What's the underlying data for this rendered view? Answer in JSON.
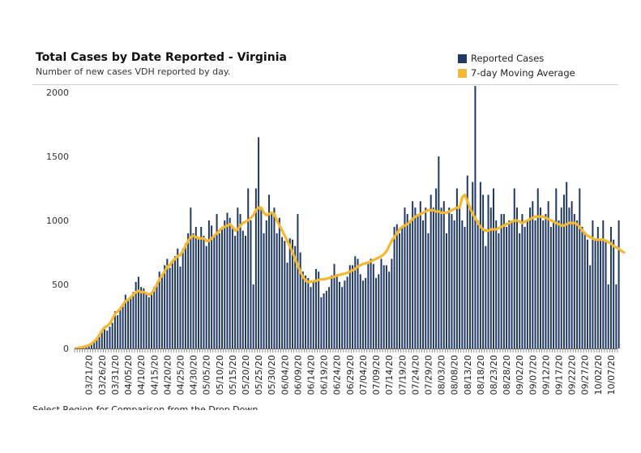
{
  "chart_data": {
    "type": "bar",
    "title": "Total Cases by Date Reported - Virginia",
    "subtitle": "Number of new cases VDH reported by day.",
    "legend": [
      {
        "label": "Reported Cases",
        "color": "#1f3864",
        "kind": "bar"
      },
      {
        "label": "7-day Moving Average",
        "color": "#f5b82e",
        "kind": "line"
      }
    ],
    "legend_position": "top-right",
    "ylim": [
      0,
      2000
    ],
    "yticks": [
      "0",
      "500",
      "1000",
      "1500",
      "2000"
    ],
    "x_start": "03/16/20",
    "x_end": "10/09/20",
    "xtick_labels": [
      "03/21/20",
      "03/26/20",
      "03/31/20",
      "04/05/20",
      "04/10/20",
      "04/15/20",
      "04/20/20",
      "04/25/20",
      "04/30/20",
      "05/05/20",
      "05/10/20",
      "05/15/20",
      "05/20/20",
      "05/25/20",
      "05/30/20",
      "06/04/20",
      "06/09/20",
      "06/14/20",
      "06/19/20",
      "06/24/20",
      "06/29/20",
      "07/04/20",
      "07/09/20",
      "07/14/20",
      "07/19/20",
      "07/24/20",
      "07/29/20",
      "08/03/20",
      "08/08/20",
      "08/13/20",
      "08/18/20",
      "08/23/20",
      "08/28/20",
      "09/02/20",
      "09/07/20",
      "09/12/20",
      "09/17/20",
      "09/22/20",
      "09/27/20",
      "10/02/20",
      "10/07/20"
    ],
    "series": [
      {
        "name": "Reported Cases",
        "type": "bar",
        "values": [
          2,
          5,
          10,
          15,
          20,
          30,
          45,
          60,
          80,
          110,
          130,
          150,
          140,
          170,
          200,
          290,
          260,
          300,
          330,
          420,
          380,
          400,
          440,
          520,
          560,
          480,
          470,
          430,
          400,
          420,
          480,
          500,
          600,
          570,
          650,
          700,
          630,
          680,
          720,
          780,
          640,
          780,
          820,
          900,
          1100,
          900,
          950,
          860,
          950,
          880,
          800,
          1000,
          960,
          880,
          1050,
          900,
          950,
          1000,
          1060,
          1020,
          940,
          880,
          1100,
          1050,
          920,
          880,
          1250,
          1000,
          500,
          1250,
          1650,
          1100,
          900,
          1000,
          1200,
          1050,
          1100,
          900,
          1020,
          870,
          840,
          670,
          860,
          850,
          800,
          1050,
          750,
          600,
          570,
          550,
          480,
          530,
          620,
          600,
          400,
          430,
          450,
          480,
          570,
          660,
          580,
          520,
          480,
          530,
          560,
          650,
          650,
          720,
          700,
          580,
          530,
          550,
          680,
          700,
          660,
          550,
          580,
          700,
          650,
          650,
          600,
          700,
          950,
          970,
          900,
          950,
          1100,
          1050,
          1000,
          1150,
          1100,
          1050,
          1150,
          1000,
          1100,
          900,
          1200,
          1100,
          1250,
          1500,
          1100,
          1150,
          900,
          1100,
          1050,
          1000,
          1250,
          1100,
          1000,
          950,
          1350,
          1100,
          1300,
          2050,
          1000,
          1300,
          1200,
          800,
          1200,
          1100,
          1250,
          1000,
          900,
          1050,
          1050,
          950,
          1000,
          1000,
          1250,
          1100,
          900,
          1050,
          950,
          1000,
          1100,
          1150,
          1000,
          1250,
          1100,
          1000,
          1050,
          1150,
          950,
          1000,
          1250,
          1000,
          1100,
          1200,
          1300,
          1100,
          1150,
          1050,
          1000,
          1250,
          950,
          900,
          850,
          650,
          1000,
          850,
          950,
          850,
          1000,
          850,
          500,
          950,
          850,
          500,
          1000
        ],
        "color": "#1f3864"
      },
      {
        "name": "7-day Moving Average",
        "type": "line",
        "values": [
          2,
          5,
          8,
          12,
          18,
          25,
          38,
          55,
          75,
          105,
          140,
          165,
          175,
          195,
          230,
          270,
          290,
          310,
          340,
          370,
          380,
          400,
          420,
          440,
          450,
          440,
          440,
          430,
          420,
          430,
          460,
          500,
          540,
          570,
          600,
          640,
          650,
          680,
          700,
          720,
          730,
          760,
          800,
          840,
          870,
          880,
          870,
          860,
          860,
          860,
          840,
          840,
          860,
          880,
          900,
          920,
          940,
          950,
          960,
          970,
          950,
          920,
          930,
          960,
          980,
          990,
          1000,
          1020,
          1040,
          1080,
          1100,
          1100,
          1060,
          1040,
          1050,
          1060,
          1050,
          1000,
          960,
          920,
          880,
          840,
          800,
          750,
          700,
          650,
          600,
          560,
          530,
          520,
          520,
          525,
          530,
          535,
          540,
          540,
          545,
          550,
          555,
          560,
          570,
          575,
          580,
          585,
          590,
          600,
          610,
          620,
          640,
          650,
          660,
          665,
          670,
          680,
          690,
          700,
          710,
          720,
          735,
          760,
          800,
          840,
          870,
          900,
          930,
          950,
          960,
          970,
          990,
          1010,
          1030,
          1040,
          1050,
          1060,
          1070,
          1080,
          1080,
          1080,
          1070,
          1070,
          1060,
          1060,
          1060,
          1070,
          1080,
          1090,
          1100,
          1100,
          1180,
          1200,
          1150,
          1100,
          1050,
          1020,
          980,
          950,
          930,
          920,
          920,
          930,
          930,
          930,
          940,
          950,
          960,
          970,
          980,
          990,
          1000,
          1000,
          990,
          980,
          990,
          1000,
          1010,
          1020,
          1030,
          1030,
          1030,
          1030,
          1020,
          1010,
          1000,
          990,
          980,
          970,
          960,
          960,
          970,
          980,
          980,
          980,
          970,
          950,
          920,
          900,
          880,
          870,
          860,
          850,
          850,
          850,
          850,
          840,
          830,
          820,
          800,
          790,
          780,
          760,
          750
        ],
        "color": "#f5b82e"
      }
    ]
  },
  "footer_text": "Select Region for Comparison from the Drop Down"
}
